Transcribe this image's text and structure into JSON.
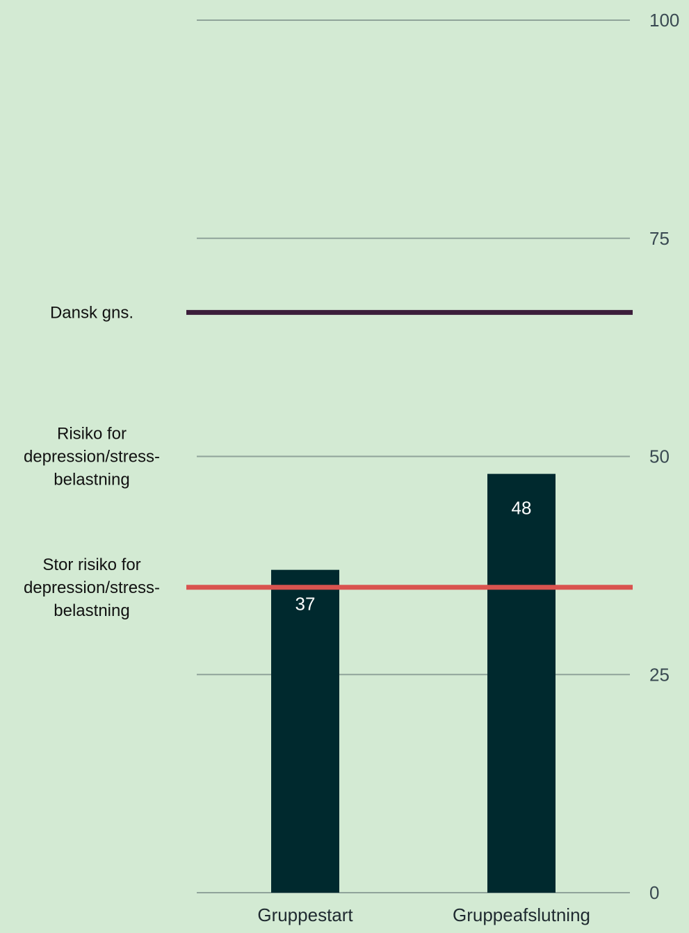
{
  "chart_data": {
    "type": "bar",
    "title": "",
    "xlabel": "",
    "ylabel": "",
    "categories": [
      "Gruppestart",
      "Gruppeafslutning"
    ],
    "values": [
      37,
      48
    ],
    "value_labels": [
      "37",
      "48"
    ],
    "ylim": [
      0,
      100
    ],
    "y_ticks": [
      0,
      25,
      50,
      75,
      100
    ],
    "y_tick_labels": [
      "0",
      "25",
      "50",
      "75",
      "100"
    ],
    "y_axis_side": "right",
    "grid": true,
    "bar_color": "#00292e",
    "gridline_color": "#8fa39a",
    "reference_lines": [
      {
        "label_lines": [
          "Dansk gns."
        ],
        "value": 66.5,
        "color": "#3b1e3a"
      },
      {
        "label_lines": [
          "Risiko for",
          "depression/stress-",
          "belastning"
        ],
        "value": 50,
        "color": ""
      },
      {
        "label_lines": [
          "Stor risiko for",
          "depression/stress-",
          "belastning"
        ],
        "value": 35,
        "color": "#d9534f"
      }
    ]
  }
}
